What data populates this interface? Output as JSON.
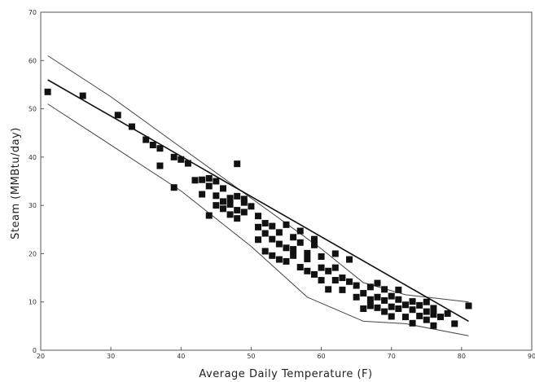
{
  "chart_data": {
    "type": "scatter",
    "title": "",
    "xlabel": "Average Daily Temperature (F)",
    "ylabel": "Steam (MMBtu/day)",
    "xlim": [
      20,
      90
    ],
    "ylim": [
      0,
      70
    ],
    "x_ticks": [
      "20",
      "30",
      "40",
      "50",
      "60",
      "70",
      "80",
      "90"
    ],
    "y_ticks": [
      "0",
      "10",
      "20",
      "30",
      "40",
      "50",
      "60",
      "70"
    ],
    "grid": false,
    "legend": "none",
    "marker_color": "#111111",
    "points": [
      [
        21,
        53.5
      ],
      [
        26,
        52.7
      ],
      [
        31,
        48.7
      ],
      [
        33,
        46.3
      ],
      [
        35,
        43.6
      ],
      [
        36,
        42.5
      ],
      [
        37,
        41.8
      ],
      [
        37,
        38.2
      ],
      [
        39,
        40.0
      ],
      [
        39,
        33.7
      ],
      [
        40,
        39.5
      ],
      [
        41,
        38.7
      ],
      [
        42,
        35.2
      ],
      [
        43,
        35.3
      ],
      [
        43,
        32.3
      ],
      [
        44,
        34.0
      ],
      [
        44,
        35.6
      ],
      [
        44,
        27.9
      ],
      [
        45,
        35.0
      ],
      [
        45,
        32.0
      ],
      [
        45,
        30.0
      ],
      [
        46,
        33.5
      ],
      [
        46,
        29.3
      ],
      [
        46,
        30.8
      ],
      [
        47,
        31.5
      ],
      [
        47,
        28.1
      ],
      [
        47,
        30.2
      ],
      [
        48,
        38.6
      ],
      [
        48,
        29.0
      ],
      [
        48,
        27.3
      ],
      [
        48,
        31.9
      ],
      [
        49,
        31.3
      ],
      [
        49,
        28.6
      ],
      [
        49,
        30.6
      ],
      [
        50,
        29.8
      ],
      [
        51,
        25.5
      ],
      [
        51,
        22.9
      ],
      [
        51,
        27.8
      ],
      [
        52,
        24.2
      ],
      [
        52,
        20.5
      ],
      [
        52,
        26.3
      ],
      [
        53,
        23.0
      ],
      [
        53,
        19.6
      ],
      [
        53,
        25.7
      ],
      [
        54,
        22.0
      ],
      [
        54,
        18.8
      ],
      [
        54,
        24.4
      ],
      [
        55,
        21.2
      ],
      [
        55,
        26.0
      ],
      [
        55,
        18.4
      ],
      [
        56,
        23.4
      ],
      [
        56,
        19.6
      ],
      [
        56,
        20.9
      ],
      [
        57,
        22.3
      ],
      [
        57,
        17.2
      ],
      [
        57,
        24.7
      ],
      [
        58,
        20.1
      ],
      [
        58,
        16.4
      ],
      [
        58,
        18.9
      ],
      [
        59,
        21.8
      ],
      [
        59,
        15.7
      ],
      [
        59,
        23.0
      ],
      [
        60,
        19.4
      ],
      [
        60,
        14.5
      ],
      [
        60,
        17.1
      ],
      [
        61,
        16.4
      ],
      [
        61,
        12.6
      ],
      [
        62,
        20.0
      ],
      [
        62,
        14.5
      ],
      [
        62,
        17.1
      ],
      [
        63,
        15.0
      ],
      [
        63,
        12.5
      ],
      [
        64,
        18.8
      ],
      [
        64,
        14.2
      ],
      [
        65,
        13.4
      ],
      [
        65,
        11.0
      ],
      [
        66,
        11.8
      ],
      [
        66,
        8.6
      ],
      [
        67,
        10.5
      ],
      [
        67,
        9.2
      ],
      [
        67,
        13.1
      ],
      [
        68,
        11.0
      ],
      [
        68,
        8.8
      ],
      [
        68,
        13.9
      ],
      [
        69,
        10.3
      ],
      [
        69,
        8.0
      ],
      [
        69,
        12.6
      ],
      [
        70,
        11.2
      ],
      [
        70,
        9.0
      ],
      [
        70,
        7.0
      ],
      [
        71,
        10.5
      ],
      [
        71,
        8.6
      ],
      [
        71,
        12.5
      ],
      [
        72,
        9.4
      ],
      [
        72,
        6.9
      ],
      [
        73,
        8.4
      ],
      [
        73,
        10.1
      ],
      [
        73,
        5.6
      ],
      [
        74,
        9.3
      ],
      [
        74,
        7.1
      ],
      [
        75,
        8.0
      ],
      [
        75,
        10.0
      ],
      [
        75,
        6.3
      ],
      [
        76,
        8.7
      ],
      [
        76,
        7.4
      ],
      [
        76,
        5.1
      ],
      [
        77,
        6.9
      ],
      [
        78,
        7.6
      ],
      [
        79,
        5.5
      ],
      [
        81,
        9.2
      ]
    ],
    "fit_line": {
      "x": [
        21,
        81
      ],
      "y": [
        56,
        6
      ]
    },
    "upper_band": {
      "x": [
        21,
        30,
        40,
        50,
        60,
        66,
        72,
        81
      ],
      "y": [
        61,
        52.5,
        42,
        31.5,
        21,
        14,
        11.5,
        10
      ]
    },
    "lower_band": {
      "x": [
        21,
        30,
        40,
        50,
        58,
        66,
        72,
        81
      ],
      "y": [
        51,
        42.5,
        33,
        21.5,
        11,
        6,
        5.5,
        3
      ]
    }
  }
}
